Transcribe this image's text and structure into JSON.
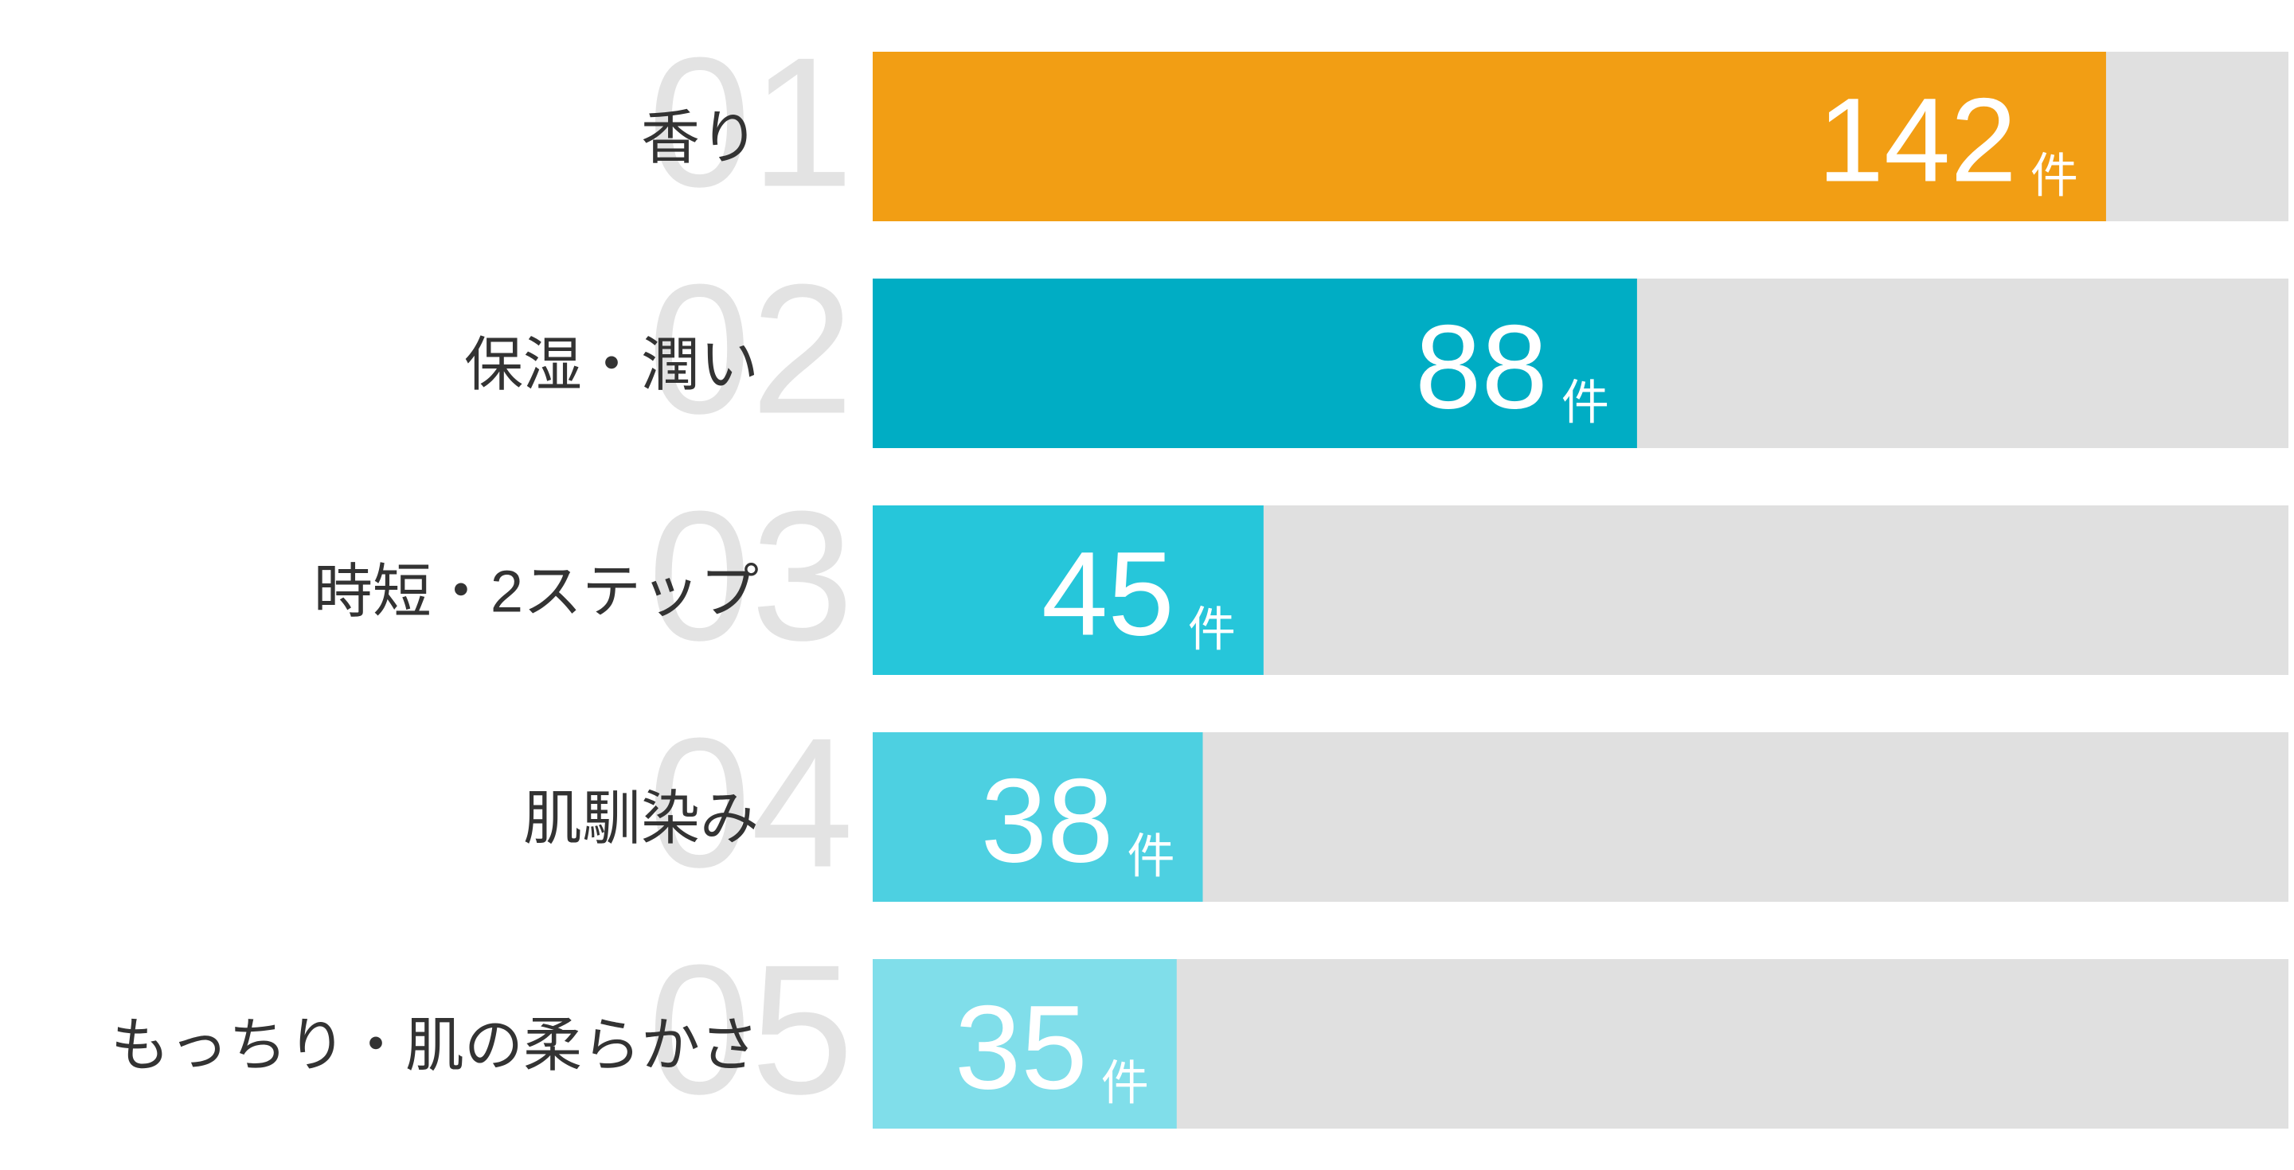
{
  "chart_data": {
    "type": "bar",
    "orientation": "horizontal",
    "categories": [
      "香り",
      "保湿・潤い",
      "時短・2ステップ",
      "肌馴染み",
      "もっちり・肌の柔らかさ"
    ],
    "ranks": [
      "01",
      "02",
      "03",
      "04",
      "05"
    ],
    "values": [
      142,
      88,
      45,
      38,
      35
    ],
    "unit": "件",
    "colors": [
      "#f29e14",
      "#00adc4",
      "#26c6da",
      "#4dd0e1",
      "#80deea"
    ],
    "track_color": "#e0e0e0",
    "xlim": [
      0,
      163
    ]
  }
}
